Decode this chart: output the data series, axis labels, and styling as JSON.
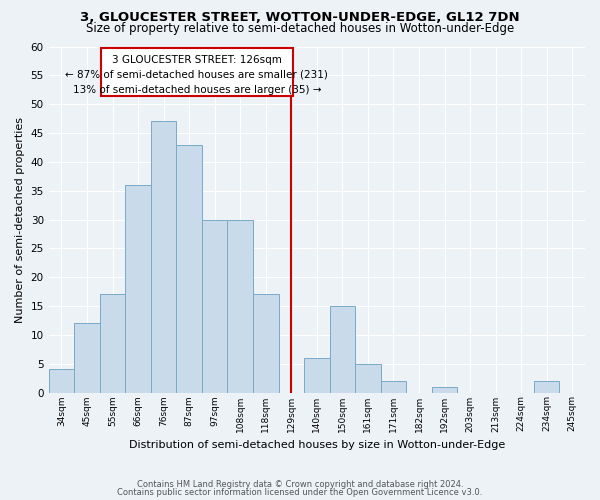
{
  "title": "3, GLOUCESTER STREET, WOTTON-UNDER-EDGE, GL12 7DN",
  "subtitle": "Size of property relative to semi-detached houses in Wotton-under-Edge",
  "xlabel": "Distribution of semi-detached houses by size in Wotton-under-Edge",
  "ylabel": "Number of semi-detached properties",
  "footnote1": "Contains HM Land Registry data © Crown copyright and database right 2024.",
  "footnote2": "Contains public sector information licensed under the Open Government Licence v3.0.",
  "bin_labels": [
    "34sqm",
    "45sqm",
    "55sqm",
    "66sqm",
    "76sqm",
    "87sqm",
    "97sqm",
    "108sqm",
    "118sqm",
    "129sqm",
    "140sqm",
    "150sqm",
    "161sqm",
    "171sqm",
    "182sqm",
    "192sqm",
    "203sqm",
    "213sqm",
    "224sqm",
    "234sqm",
    "245sqm"
  ],
  "bar_heights": [
    4,
    12,
    17,
    36,
    47,
    43,
    30,
    30,
    17,
    0,
    6,
    15,
    5,
    2,
    0,
    1,
    0,
    0,
    0,
    2,
    0
  ],
  "bar_color": "#c9daea",
  "bar_edge_color": "#7aaac8",
  "ylim": [
    0,
    60
  ],
  "yticks": [
    0,
    5,
    10,
    15,
    20,
    25,
    30,
    35,
    40,
    45,
    50,
    55,
    60
  ],
  "vline_x_index": 9,
  "vline_color": "#cc0000",
  "annotation_title": "3 GLOUCESTER STREET: 126sqm",
  "annotation_line1": "← 87% of semi-detached houses are smaller (231)",
  "annotation_line2": "13% of semi-detached houses are larger (35) →",
  "annotation_box_color": "#cc0000",
  "bg_color": "#edf2f7",
  "grid_color": "#ffffff",
  "title_fontsize": 9.5,
  "subtitle_fontsize": 8.5
}
